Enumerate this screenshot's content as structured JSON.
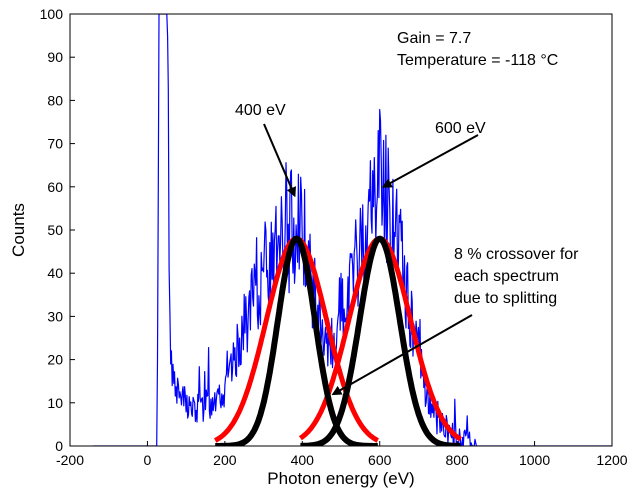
{
  "chart_data": {
    "type": "line",
    "xlabel": "Photon energy (eV)",
    "ylabel": "Counts",
    "xlim": [
      -200,
      1200
    ],
    "ylim": [
      0,
      100
    ],
    "x_ticks": [
      -200,
      0,
      200,
      400,
      600,
      800,
      1000,
      1200
    ],
    "y_ticks": [
      0,
      10,
      20,
      30,
      40,
      50,
      60,
      70,
      80,
      90,
      100
    ],
    "grid": false,
    "colors": {
      "spectrum": "#0000ff",
      "fit_red": "#ff0000",
      "fit_black": "#000000"
    },
    "series": [
      {
        "color": "#0000ff",
        "style": "noisy-spectrum",
        "x": [
          -140,
          25,
          30,
          35,
          45,
          50,
          55,
          60,
          70,
          80,
          100,
          120,
          140,
          160,
          180,
          200,
          220,
          240,
          260,
          280,
          300,
          320,
          340,
          360,
          380,
          390,
          400,
          420,
          440,
          460,
          480,
          500,
          520,
          540,
          560,
          580,
          600,
          620,
          640,
          660,
          680,
          700,
          720,
          740,
          760,
          780,
          800,
          850,
          900,
          1200
        ],
        "y": [
          0,
          0,
          100,
          100,
          100,
          100,
          60,
          20,
          15,
          12,
          10,
          8,
          9,
          10,
          12,
          13,
          18,
          25,
          30,
          35,
          40,
          43,
          45,
          48,
          52,
          55,
          50,
          40,
          30,
          22,
          20,
          26,
          35,
          42,
          48,
          55,
          65,
          58,
          50,
          40,
          30,
          22,
          12,
          8,
          5,
          3,
          1,
          0,
          0,
          0
        ]
      },
      {
        "color": "#ff0000",
        "style": "gaussian",
        "center": 385,
        "sigma": 78,
        "amplitude": 48,
        "range": [
          175,
          595
        ]
      },
      {
        "color": "#ff0000",
        "style": "gaussian",
        "center": 600,
        "sigma": 80,
        "amplitude": 48,
        "range": [
          395,
          810
        ]
      },
      {
        "color": "#000000",
        "style": "gaussian",
        "center": 385,
        "sigma": 48,
        "amplitude": 48,
        "range": [
          175,
          595
        ]
      },
      {
        "color": "#000000",
        "style": "gaussian",
        "center": 600,
        "sigma": 52,
        "amplitude": 48,
        "range": [
          395,
          810
        ]
      }
    ],
    "annotations": [
      {
        "lines": [
          "Gain = 7.7",
          "Temperature = -118 °C"
        ]
      },
      {
        "lines": [
          "400 eV"
        ],
        "arrow_to": [
          380,
          58
        ]
      },
      {
        "lines": [
          "600 eV"
        ],
        "arrow_to": [
          610,
          60
        ]
      },
      {
        "lines": [
          "8 % crossover for",
          "each spectrum",
          "due to splitting"
        ],
        "arrow_to": [
          480,
          12
        ]
      }
    ]
  }
}
